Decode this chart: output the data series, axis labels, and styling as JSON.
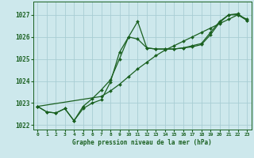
{
  "title": "Graphe pression niveau de la mer (hPa)",
  "background_color": "#cde8ec",
  "grid_color": "#a8cdd4",
  "line_color": "#1a6020",
  "xlim": [
    -0.5,
    23.5
  ],
  "ylim": [
    1021.8,
    1027.6
  ],
  "yticks": [
    1022,
    1023,
    1024,
    1025,
    1026,
    1027
  ],
  "xticks": [
    0,
    1,
    2,
    3,
    4,
    5,
    6,
    7,
    8,
    9,
    10,
    11,
    12,
    13,
    14,
    15,
    16,
    17,
    18,
    19,
    20,
    21,
    22,
    23
  ],
  "line1_x": [
    0,
    1,
    2,
    3,
    4,
    5,
    6,
    7,
    8,
    9,
    10,
    11,
    12,
    13,
    14,
    15,
    16,
    17,
    18,
    19,
    20,
    21,
    22,
    23
  ],
  "line1_y": [
    1022.85,
    1022.6,
    1022.55,
    1022.75,
    1022.2,
    1022.75,
    1023.0,
    1023.15,
    1023.95,
    1025.3,
    1026.0,
    1026.7,
    1025.5,
    1025.45,
    1025.45,
    1025.45,
    1025.5,
    1025.55,
    1025.65,
    1026.1,
    1026.65,
    1027.0,
    1027.0,
    1026.75
  ],
  "line2_x": [
    0,
    1,
    2,
    3,
    4,
    5,
    6,
    7,
    8,
    9,
    10,
    11,
    12,
    13,
    14,
    15,
    16,
    17,
    18,
    19,
    20,
    21,
    22,
    23
  ],
  "line2_y": [
    1022.85,
    1022.6,
    1022.55,
    1022.75,
    1022.2,
    1022.85,
    1023.2,
    1023.6,
    1024.05,
    1025.0,
    1026.0,
    1025.9,
    1025.5,
    1025.45,
    1025.45,
    1025.45,
    1025.5,
    1025.6,
    1025.7,
    1026.2,
    1026.7,
    1027.0,
    1027.05,
    1026.75
  ],
  "line3_x": [
    0,
    7,
    8,
    9,
    10,
    11,
    12,
    13,
    14,
    15,
    16,
    17,
    18,
    19,
    20,
    21,
    22,
    23
  ],
  "line3_y": [
    1022.85,
    1023.3,
    1023.55,
    1023.85,
    1024.2,
    1024.55,
    1024.85,
    1025.15,
    1025.4,
    1025.6,
    1025.8,
    1026.0,
    1026.2,
    1026.4,
    1026.6,
    1026.8,
    1027.0,
    1026.8
  ]
}
